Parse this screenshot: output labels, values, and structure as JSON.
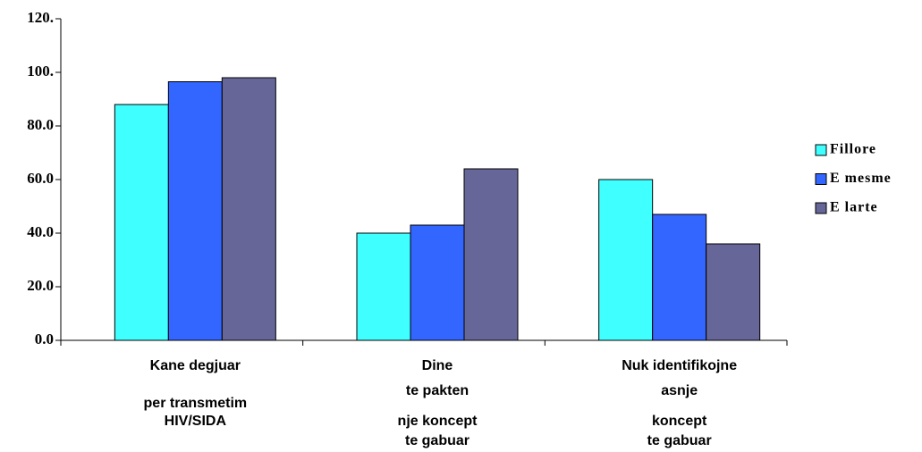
{
  "chart_data": {
    "type": "bar",
    "categories": [
      [
        "Kane degjuar",
        "per transmetim",
        "HIV/SIDA"
      ],
      [
        "Dine",
        "te pakten",
        "nje koncept",
        "te gabuar"
      ],
      [
        "Nuk identifikojne",
        "asnje",
        "koncept",
        "te gabuar"
      ]
    ],
    "series": [
      {
        "name": "Fillore",
        "color": "#40ffff",
        "values": [
          88,
          40,
          60
        ]
      },
      {
        "name": "E mesme",
        "color": "#3366ff",
        "values": [
          96.5,
          43,
          47
        ]
      },
      {
        "name": "E larte",
        "color": "#666699",
        "values": [
          98,
          64,
          36
        ]
      }
    ],
    "ylim": [
      0,
      120
    ],
    "yticks": [
      {
        "value": 0,
        "label": "0.0"
      },
      {
        "value": 20,
        "label": "20.0"
      },
      {
        "value": 40,
        "label": "40.0"
      },
      {
        "value": 60,
        "label": "60.0"
      },
      {
        "value": 80,
        "label": "80.0"
      },
      {
        "value": 100,
        "label": "100."
      },
      {
        "value": 120,
        "label": "120."
      }
    ],
    "legend": "right"
  }
}
